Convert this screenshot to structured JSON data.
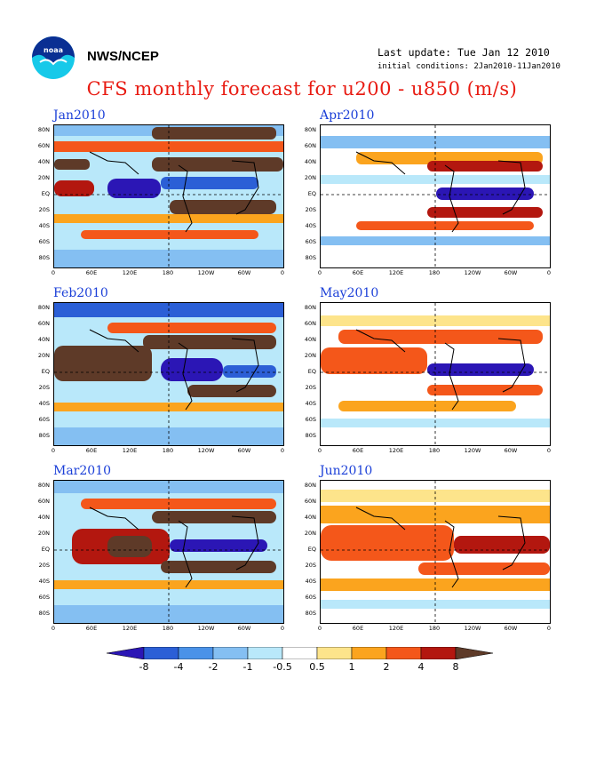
{
  "header": {
    "agency": "NWS/NCEP",
    "last_update": "Last update: Tue Jan 12 2010",
    "initial_conditions": "initial conditions: 2Jan2010-11Jan2010",
    "title": "CFS monthly forecast for u200 - u850 (m/s)",
    "logo_text": "noaa"
  },
  "axes": {
    "lat_labels": [
      "80N",
      "60N",
      "40N",
      "20N",
      "EQ",
      "20S",
      "40S",
      "60S",
      "80S"
    ],
    "lon_labels": [
      "0",
      "60E",
      "120E",
      "180",
      "120W",
      "60W",
      "0"
    ]
  },
  "panels": [
    {
      "title": "Jan2010",
      "column": "left",
      "row": 0
    },
    {
      "title": "Apr2010",
      "column": "right",
      "row": 0
    },
    {
      "title": "Feb2010",
      "column": "left",
      "row": 1
    },
    {
      "title": "May2010",
      "column": "right",
      "row": 1
    },
    {
      "title": "Mar2010",
      "column": "left",
      "row": 2
    },
    {
      "title": "Jun2010",
      "column": "right",
      "row": 2
    }
  ],
  "colorbar": {
    "labels": [
      "-8",
      "-4",
      "-2",
      "-1",
      "-0.5",
      "0.5",
      "1",
      "2",
      "4",
      "8"
    ],
    "colors": [
      "#2b16b5",
      "#2b5fd6",
      "#4a92e8",
      "#84bff2",
      "#b9e8fa",
      "#ffffff",
      "#fde48b",
      "#fba41e",
      "#f4571a",
      "#b3170f",
      "#5e3a28"
    ]
  }
}
